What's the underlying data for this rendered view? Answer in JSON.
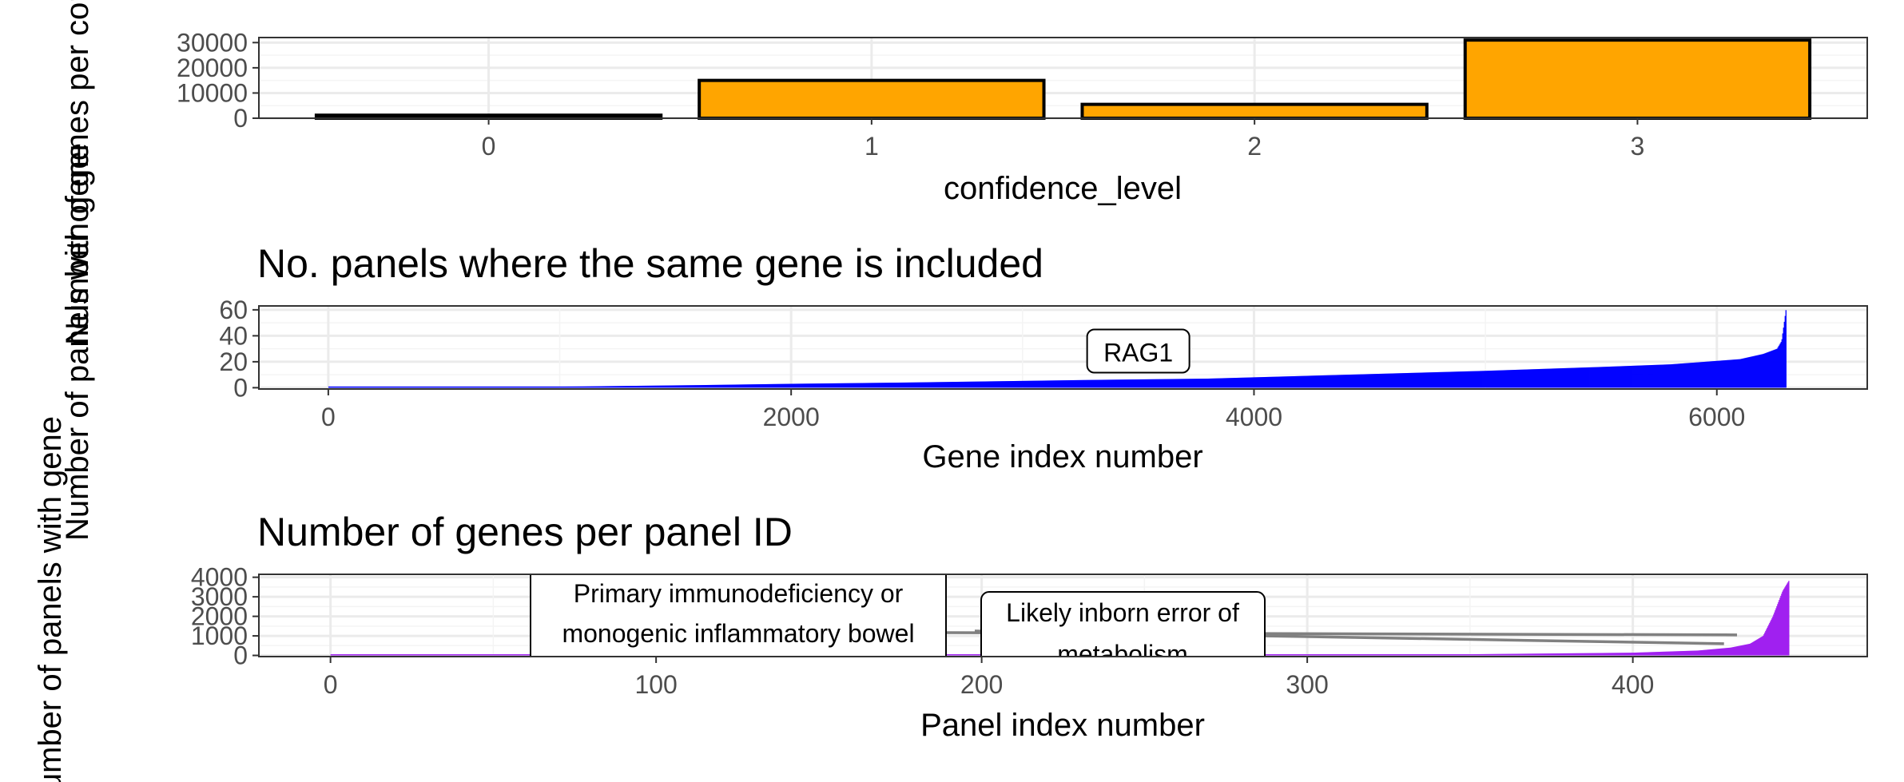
{
  "chart_data": [
    {
      "id": "confidence",
      "type": "bar",
      "title": "",
      "xlabel": "confidence_level",
      "ylabel": "Number of genes per confidence level",
      "categories": [
        "0",
        "1",
        "2",
        "3"
      ],
      "values": [
        1200,
        15000,
        5500,
        31000
      ],
      "ylim": [
        0,
        32000
      ],
      "yticks": [
        0,
        10000,
        20000,
        30000
      ],
      "bar_color": "#FFA500",
      "outline_color": "#000000",
      "grid": true
    },
    {
      "id": "gene_panels",
      "type": "bar",
      "title": "No. panels where the same gene is included",
      "xlabel": "Gene index number",
      "ylabel": "Number of panels with gene",
      "xlim": [
        -300,
        6650
      ],
      "ylim": [
        -1,
        63
      ],
      "xticks": [
        0,
        2000,
        4000,
        6000
      ],
      "yticks": [
        0,
        20,
        40,
        60
      ],
      "n_points": 6300,
      "bar_color": "#0000FF",
      "profile": [
        [
          0,
          0
        ],
        [
          1100,
          1
        ],
        [
          1600,
          2
        ],
        [
          2000,
          3
        ],
        [
          2500,
          4
        ],
        [
          2900,
          5
        ],
        [
          3300,
          6
        ],
        [
          3800,
          7
        ],
        [
          4200,
          9
        ],
        [
          4600,
          11
        ],
        [
          5000,
          13
        ],
        [
          5500,
          16
        ],
        [
          5800,
          18
        ],
        [
          6100,
          22
        ],
        [
          6200,
          26
        ],
        [
          6260,
          30
        ],
        [
          6280,
          36
        ],
        [
          6300,
          62
        ]
      ],
      "annotations": [
        {
          "label": "RAG1",
          "x": 3500,
          "y": 27
        }
      ],
      "grid": true
    },
    {
      "id": "panel_genes",
      "type": "bar",
      "title": "Number of genes per panel ID",
      "xlabel": "Panel index number",
      "ylabel": "Number of panels with gene",
      "xlim": [
        -22,
        472
      ],
      "ylim": [
        -60,
        4150
      ],
      "xticks": [
        0,
        100,
        200,
        300,
        400
      ],
      "yticks": [
        0,
        1000,
        2000,
        3000,
        4000
      ],
      "n_points": 448,
      "bar_color": "#A020F0",
      "profile": [
        [
          0,
          0
        ],
        [
          200,
          10
        ],
        [
          300,
          20
        ],
        [
          350,
          60
        ],
        [
          400,
          140
        ],
        [
          420,
          250
        ],
        [
          430,
          400
        ],
        [
          436,
          600
        ],
        [
          440,
          1000
        ],
        [
          443,
          2000
        ],
        [
          446,
          3300
        ],
        [
          448,
          3850
        ]
      ],
      "annotations": [
        {
          "label": "Primary immunodeficiency or monogenic inflammatory bowel",
          "line1": "Primary immunodeficiency or",
          "line2": "monogenic inflammatory bowel",
          "x": 432,
          "y": 1050
        },
        {
          "label": "Likely inborn error of metabolism",
          "line1": "Likely inborn error of",
          "line2": "metabolism",
          "x": 428,
          "y": 600
        }
      ],
      "grid": true
    }
  ]
}
